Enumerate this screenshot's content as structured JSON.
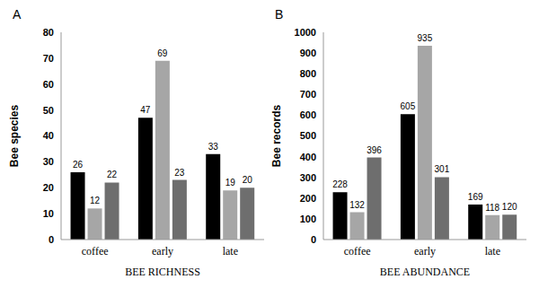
{
  "chart_data": [
    {
      "type": "bar",
      "title": "A",
      "xlabel": "BEE RICHNESS",
      "ylabel": "Bee species",
      "categories": [
        "coffee",
        "early",
        "late"
      ],
      "series": [
        {
          "color": "#000000",
          "values": [
            26,
            47,
            33
          ]
        },
        {
          "color": "#a6a6a6",
          "values": [
            12,
            69,
            19
          ]
        },
        {
          "color": "#6e6e6e",
          "values": [
            22,
            23,
            20
          ]
        }
      ],
      "ylim": [
        0,
        80
      ],
      "yticks": [
        0,
        10,
        20,
        30,
        40,
        50,
        60,
        70,
        80
      ],
      "grid": false,
      "data_labels": true
    },
    {
      "type": "bar",
      "title": "B",
      "xlabel": "BEE ABUNDANCE",
      "ylabel": "Bee records",
      "categories": [
        "coffee",
        "early",
        "late"
      ],
      "series": [
        {
          "color": "#000000",
          "values": [
            228,
            605,
            169
          ]
        },
        {
          "color": "#a6a6a6",
          "values": [
            132,
            935,
            118
          ]
        },
        {
          "color": "#6e6e6e",
          "values": [
            396,
            301,
            120
          ]
        }
      ],
      "ylim": [
        0,
        1000
      ],
      "yticks": [
        0,
        100,
        200,
        300,
        400,
        500,
        600,
        700,
        800,
        900,
        1000
      ],
      "grid": false,
      "data_labels": true
    }
  ]
}
